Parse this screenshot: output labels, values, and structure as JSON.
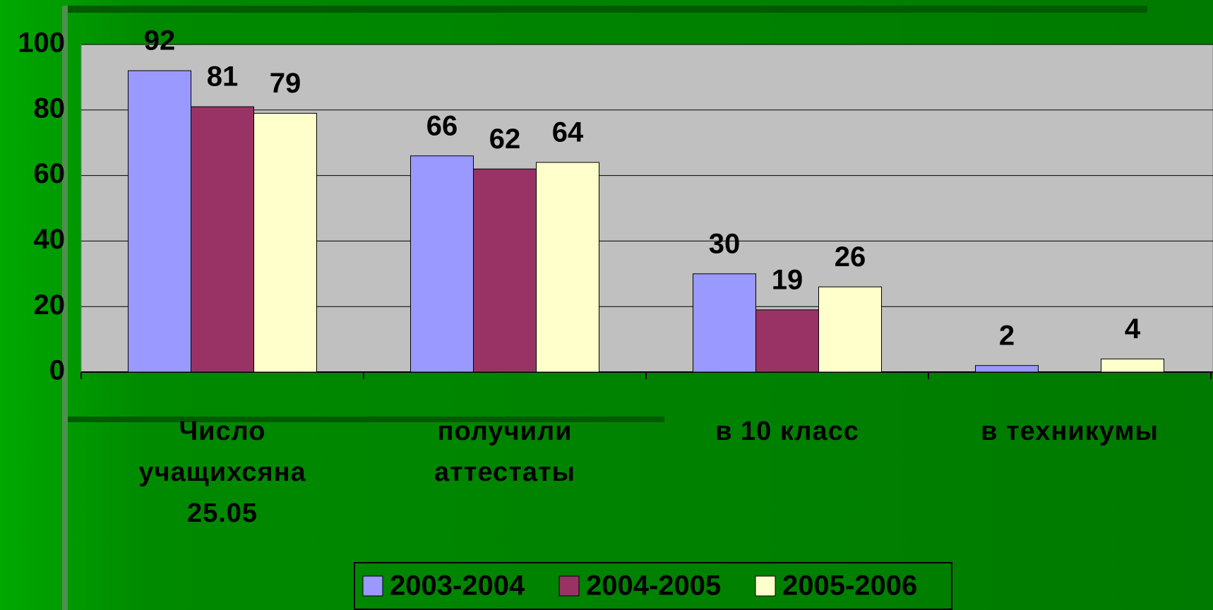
{
  "chart_data": {
    "type": "bar",
    "categories": [
      "Число учащихсяна 25.05",
      "получили аттестаты",
      "в 10 класс",
      "в техникумы"
    ],
    "series": [
      {
        "name": "2003-2004",
        "color": "#9999ff",
        "values": [
          92,
          66,
          30,
          2
        ]
      },
      {
        "name": "2004-2005",
        "color": "#993366",
        "values": [
          81,
          62,
          19,
          null
        ]
      },
      {
        "name": "2005-2006",
        "color": "#ffffcc",
        "values": [
          79,
          64,
          26,
          4
        ]
      }
    ],
    "ylim": [
      0,
      100
    ],
    "yticks": [
      0,
      20,
      40,
      60,
      80,
      100
    ],
    "grid": true,
    "legend": "bottom"
  }
}
